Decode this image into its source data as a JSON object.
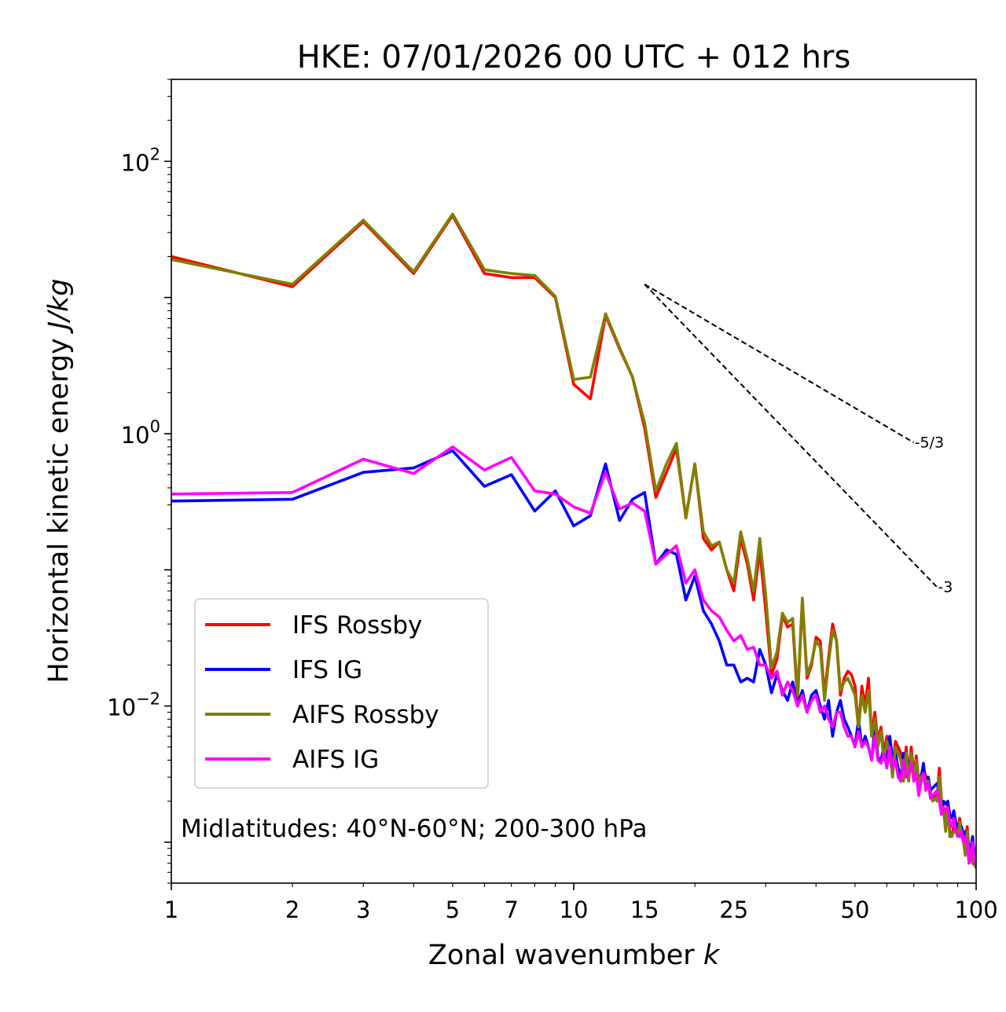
{
  "chart_data": {
    "type": "line",
    "title": "HKE: 07/01/2026 00 UTC + 012 hrs",
    "xlabel": "Zonal wavenumber",
    "xlabel_var": "k",
    "ylabel": "Horizontal kinetic energy",
    "ylabel_units": "J/kg",
    "xscale": "log",
    "yscale": "log",
    "xlim": [
      1,
      100
    ],
    "ylim": [
      0.0005,
      400
    ],
    "x_ticks": [
      {
        "value": 1,
        "label": "1"
      },
      {
        "value": 2,
        "label": "2"
      },
      {
        "value": 3,
        "label": "3"
      },
      {
        "value": 5,
        "label": "5"
      },
      {
        "value": 7,
        "label": "7"
      },
      {
        "value": 10,
        "label": "10"
      },
      {
        "value": 15,
        "label": "15"
      },
      {
        "value": 25,
        "label": "25"
      },
      {
        "value": 50,
        "label": "50"
      },
      {
        "value": 100,
        "label": "100"
      }
    ],
    "y_ticks": [
      {
        "value": 0.01,
        "base": "10",
        "exp": "−2"
      },
      {
        "value": 1,
        "base": "10",
        "exp": "0"
      },
      {
        "value": 100,
        "base": "10",
        "exp": "2"
      }
    ],
    "annotation": "Midlatitudes: 40°N-60°N; 200-300 hPa",
    "legend_position": "lower-left",
    "reference_lines": [
      {
        "label": "-5/3",
        "x": [
          15,
          70
        ],
        "y": [
          12.5,
          0.86
        ]
      },
      {
        "label": "-3",
        "x": [
          15,
          80
        ],
        "y": [
          12.5,
          0.0745
        ]
      }
    ],
    "x": [
      1,
      2,
      3,
      4,
      5,
      6,
      7,
      8,
      9,
      10,
      11,
      12,
      13,
      14,
      15,
      16,
      17,
      18,
      19,
      20,
      21,
      22,
      23,
      24,
      25,
      26,
      27,
      28,
      29,
      30,
      31,
      32,
      33,
      34,
      35,
      36,
      37,
      38,
      39,
      40,
      41,
      42,
      43,
      44,
      45,
      46,
      47,
      48,
      49,
      50,
      51,
      52,
      53,
      54,
      55,
      56,
      57,
      58,
      59,
      60,
      61,
      62,
      63,
      64,
      65,
      66,
      67,
      68,
      69,
      70,
      71,
      72,
      73,
      74,
      75,
      76,
      77,
      78,
      79,
      80,
      81,
      82,
      83,
      84,
      85,
      86,
      87,
      88,
      89,
      90,
      91,
      92,
      93,
      94,
      95,
      96,
      97,
      98,
      99,
      100
    ],
    "series": [
      {
        "name": "IFS Rossby",
        "color": "#ff0000",
        "values": [
          20,
          12,
          36,
          15,
          40,
          15,
          14,
          14,
          10,
          2.3,
          1.8,
          7.4,
          4.2,
          2.6,
          1.1,
          0.34,
          0.52,
          0.78,
          0.24,
          0.6,
          0.17,
          0.14,
          0.16,
          0.1,
          0.07,
          0.17,
          0.11,
          0.06,
          0.14,
          0.05,
          0.017,
          0.022,
          0.046,
          0.038,
          0.04,
          0.011,
          0.06,
          0.016,
          0.02,
          0.032,
          0.03,
          0.012,
          0.023,
          0.04,
          0.03,
          0.012,
          0.016,
          0.018,
          0.017,
          0.014,
          0.007,
          0.014,
          0.01,
          0.016,
          0.006,
          0.009,
          0.0055,
          0.007,
          0.0045,
          0.006,
          0.005,
          0.0035,
          0.0055,
          0.005,
          0.0045,
          0.003,
          0.005,
          0.003,
          0.005,
          0.003,
          0.0043,
          0.0028,
          0.0031,
          0.0035,
          0.003,
          0.003,
          0.0023,
          0.0021,
          0.0022,
          0.0021,
          0.0035,
          0.002,
          0.0018,
          0.0013,
          0.002,
          0.0012,
          0.0011,
          0.0013,
          0.0013,
          0.0012,
          0.0015,
          0.0012,
          0.0011,
          0.0009,
          0.0013,
          0.0009,
          0.0009,
          0.00075,
          0.0007,
          0.00065
        ]
      },
      {
        "name": "IFS IG",
        "color": "#0000ff",
        "values": [
          0.32,
          0.33,
          0.52,
          0.56,
          0.75,
          0.41,
          0.5,
          0.27,
          0.38,
          0.21,
          0.25,
          0.6,
          0.23,
          0.33,
          0.37,
          0.11,
          0.14,
          0.13,
          0.06,
          0.09,
          0.05,
          0.04,
          0.03,
          0.02,
          0.02,
          0.015,
          0.016,
          0.015,
          0.026,
          0.02,
          0.0125,
          0.017,
          0.013,
          0.011,
          0.015,
          0.01,
          0.013,
          0.009,
          0.012,
          0.013,
          0.01,
          0.008,
          0.011,
          0.006,
          0.009,
          0.011,
          0.008,
          0.007,
          0.006,
          0.005,
          0.008,
          0.005,
          0.006,
          0.005,
          0.004,
          0.007,
          0.0042,
          0.004,
          0.005,
          0.004,
          0.006,
          0.0041,
          0.0045,
          0.0035,
          0.003,
          0.0045,
          0.0033,
          0.0035,
          0.0045,
          0.003,
          0.0036,
          0.0025,
          0.003,
          0.0038,
          0.0026,
          0.003,
          0.0024,
          0.0025,
          0.0026,
          0.0027,
          0.0022,
          0.0018,
          0.002,
          0.0019,
          0.002,
          0.0016,
          0.0015,
          0.0017,
          0.0014,
          0.0013,
          0.0012,
          0.0013,
          0.0011,
          0.0012,
          0.0012,
          0.0008,
          0.0009,
          0.0011,
          0.0008,
          0.0008
        ]
      },
      {
        "name": "AIFS Rossby",
        "color": "#808000",
        "values": [
          19,
          12.5,
          37,
          15.5,
          41,
          16,
          15,
          14.5,
          10.2,
          2.5,
          2.6,
          7.6,
          4.3,
          2.6,
          1.2,
          0.38,
          0.6,
          0.85,
          0.24,
          0.6,
          0.19,
          0.15,
          0.16,
          0.1,
          0.08,
          0.19,
          0.12,
          0.07,
          0.17,
          0.065,
          0.019,
          0.025,
          0.048,
          0.041,
          0.044,
          0.012,
          0.062,
          0.017,
          0.021,
          0.03,
          0.027,
          0.011,
          0.021,
          0.036,
          0.03,
          0.013,
          0.015,
          0.016,
          0.014,
          0.012,
          0.007,
          0.012,
          0.009,
          0.013,
          0.006,
          0.008,
          0.005,
          0.0065,
          0.004,
          0.0055,
          0.0045,
          0.003,
          0.005,
          0.0045,
          0.004,
          0.0028,
          0.0045,
          0.0028,
          0.0045,
          0.0028,
          0.004,
          0.0027,
          0.003,
          0.0032,
          0.0028,
          0.0028,
          0.0022,
          0.002,
          0.0021,
          0.002,
          0.003,
          0.0018,
          0.0017,
          0.0012,
          0.0018,
          0.0011,
          0.0011,
          0.0012,
          0.0012,
          0.0011,
          0.0014,
          0.0011,
          0.001,
          0.0008,
          0.0012,
          0.0008,
          0.0008,
          0.0007,
          0.00068,
          0.00065
        ]
      },
      {
        "name": "AIFS IG",
        "color": "#ff00ff",
        "values": [
          0.36,
          0.37,
          0.65,
          0.51,
          0.8,
          0.54,
          0.67,
          0.38,
          0.36,
          0.29,
          0.26,
          0.52,
          0.28,
          0.31,
          0.27,
          0.11,
          0.13,
          0.15,
          0.08,
          0.1,
          0.06,
          0.05,
          0.045,
          0.036,
          0.03,
          0.033,
          0.026,
          0.027,
          0.02,
          0.02,
          0.016,
          0.018,
          0.012,
          0.015,
          0.013,
          0.01,
          0.012,
          0.009,
          0.011,
          0.012,
          0.009,
          0.01,
          0.008,
          0.007,
          0.009,
          0.009,
          0.007,
          0.006,
          0.006,
          0.005,
          0.0065,
          0.005,
          0.0055,
          0.005,
          0.004,
          0.006,
          0.004,
          0.0038,
          0.0045,
          0.0035,
          0.005,
          0.0035,
          0.004,
          0.003,
          0.0028,
          0.004,
          0.003,
          0.0032,
          0.0038,
          0.0028,
          0.0032,
          0.0022,
          0.0028,
          0.0032,
          0.0024,
          0.0027,
          0.0021,
          0.0022,
          0.0023,
          0.0024,
          0.002,
          0.0016,
          0.0018,
          0.0017,
          0.0018,
          0.0014,
          0.0013,
          0.0015,
          0.0012,
          0.0011,
          0.0011,
          0.0012,
          0.001,
          0.0011,
          0.001,
          0.0007,
          0.0008,
          0.001,
          0.0007,
          0.0007
        ]
      }
    ]
  }
}
